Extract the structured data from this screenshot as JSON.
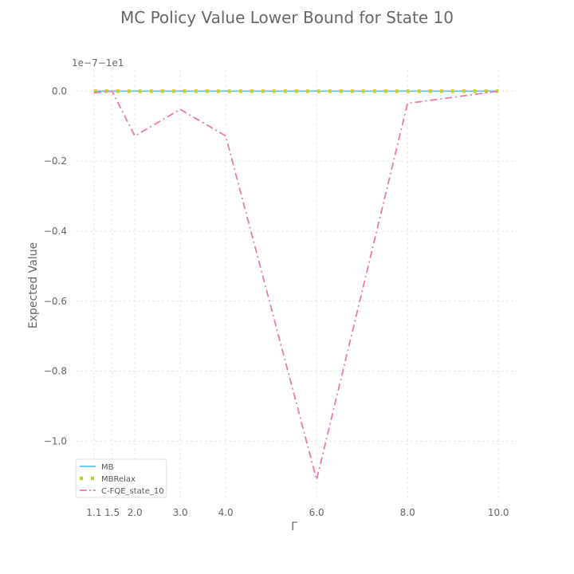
{
  "chart_data": {
    "type": "line",
    "title": "MC Policy Value Lower Bound for State 10",
    "xlabel": "Γ",
    "ylabel": "Expected Value",
    "y_offset_label": "1e−7−1e1",
    "x_ticks": [
      1.1,
      1.5,
      2.0,
      3.0,
      4.0,
      6.0,
      8.0,
      10.0
    ],
    "x_tick_labels": [
      "1.1",
      "1.5",
      "2.0",
      "3.0",
      "4.0",
      "6.0",
      "8.0",
      "10.0"
    ],
    "y_ticks": [
      0.0,
      -0.2,
      -0.4,
      -0.6,
      -0.8,
      -1.0
    ],
    "y_tick_labels": [
      "0.0",
      "−0.2",
      "−0.4",
      "−0.6",
      "−0.8",
      "−1.0"
    ],
    "xlim": [
      0.7,
      10.4
    ],
    "ylim": [
      -1.17,
      0.06
    ],
    "grid": true,
    "legend_position": "lower-left",
    "series": [
      {
        "name": "MB",
        "color": "#5bc0eb",
        "style": "solid",
        "x": [
          1.1,
          1.5,
          2.0,
          3.0,
          4.0,
          6.0,
          8.0,
          10.0
        ],
        "y": [
          0.0,
          0.0,
          0.0,
          0.0,
          0.0,
          0.0,
          0.0,
          0.0
        ]
      },
      {
        "name": "MBRelax",
        "color": "#cccc33",
        "style": "dotted",
        "x": [
          1.1,
          1.5,
          2.0,
          3.0,
          4.0,
          6.0,
          8.0,
          10.0
        ],
        "y": [
          0.0,
          0.0,
          0.0,
          0.0,
          0.0,
          0.0,
          0.0,
          0.0
        ]
      },
      {
        "name": "C-FQE_state_10",
        "color": "#ee77b3",
        "style": "dashdot",
        "x": [
          1.1,
          1.5,
          2.0,
          3.0,
          4.0,
          6.0,
          8.0,
          10.0
        ],
        "y": [
          -0.005,
          0.0,
          -0.128,
          -0.052,
          -0.128,
          -1.11,
          -0.035,
          0.0
        ]
      }
    ]
  }
}
